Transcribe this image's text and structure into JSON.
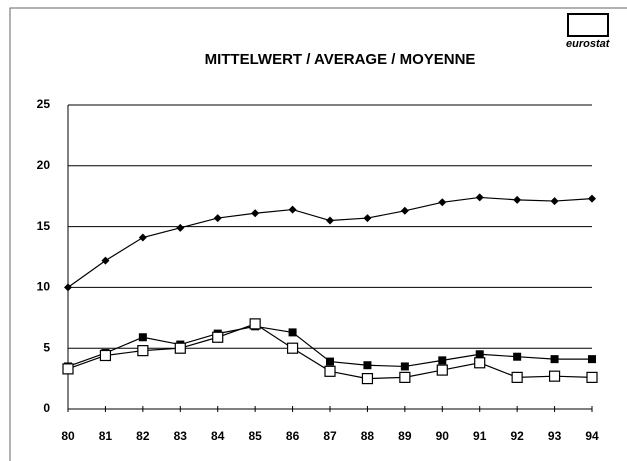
{
  "chart_data": {
    "type": "line",
    "title": "MITTELWERT / AVERAGE / MOYENNE",
    "logo": "eurostat",
    "categories": [
      "80",
      "81",
      "82",
      "83",
      "84",
      "85",
      "86",
      "87",
      "88",
      "89",
      "90",
      "91",
      "92",
      "93",
      "94"
    ],
    "series": [
      {
        "color": "#000000",
        "marker": "diamond",
        "values": [
          10,
          12.2,
          14.1,
          14.9,
          15.7,
          16.1,
          16.4,
          15.5,
          15.7,
          16.3,
          17.0,
          17.4,
          17.2,
          17.1,
          17.3
        ]
      },
      {
        "color": "#000000",
        "marker": "square",
        "values": [
          3.5,
          4.6,
          5.9,
          5.3,
          6.2,
          6.8,
          6.3,
          3.9,
          3.6,
          3.5,
          4.0,
          4.5,
          4.3,
          4.1,
          4.1
        ]
      },
      {
        "color": "#000000",
        "marker": "open-square",
        "values": [
          3.3,
          4.4,
          4.8,
          5.0,
          5.9,
          7.0,
          5.0,
          3.1,
          2.5,
          2.6,
          3.2,
          3.8,
          2.6,
          2.7,
          2.6
        ]
      }
    ],
    "ylim": [
      0,
      25
    ],
    "yticks": [
      0,
      5,
      10,
      15,
      20,
      25
    ],
    "grid": true
  }
}
